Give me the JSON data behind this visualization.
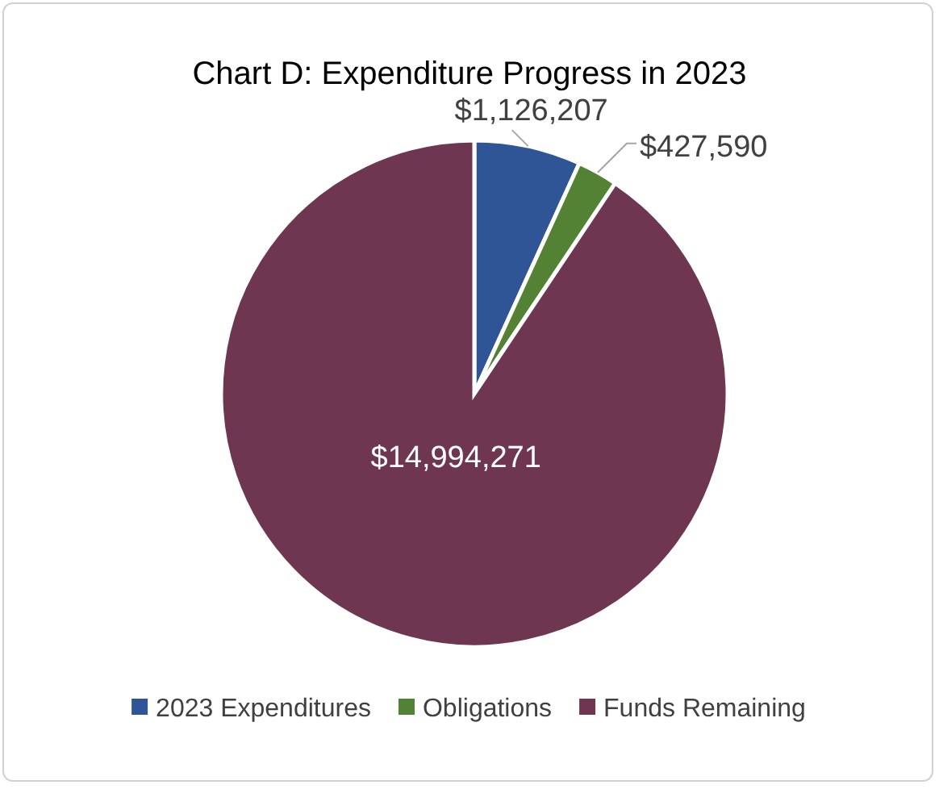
{
  "chart_data": {
    "type": "pie",
    "title": "Chart D: Expenditure Progress in 2023",
    "categories": [
      "2023 Expenditures",
      "Obligations",
      "Funds Remaining"
    ],
    "values": [
      1126207,
      427590,
      14994271
    ],
    "value_labels": [
      "$1,126,207",
      "$427,590",
      "$14,994,271"
    ],
    "colors": [
      "#2f5597",
      "#548235",
      "#6e3650"
    ],
    "legend": "bottom"
  }
}
